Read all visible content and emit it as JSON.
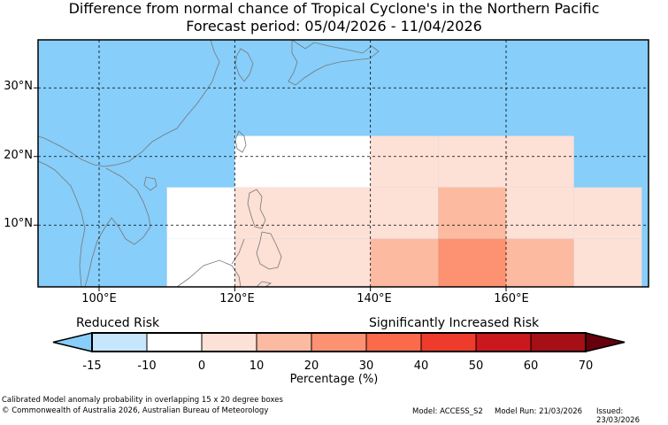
{
  "title": {
    "line1": "Difference from normal chance of Tropical Cyclone's in the Northern Pacific",
    "line2": "Forecast period: 05/04/2026 - 11/04/2026"
  },
  "map": {
    "region": "Northern Pacific",
    "lat_labels": [
      "30°N",
      "20°N",
      "10°N"
    ],
    "lon_labels": [
      "100°E",
      "120°E",
      "140°E",
      "160°E"
    ],
    "lon_range": [
      91,
      181
    ],
    "lat_range": [
      1,
      37
    ],
    "cell_width_deg": 10,
    "cell_height_deg": 7.5,
    "cells": [
      {
        "lon": 120,
        "lat": 15.5,
        "value": -10
      },
      {
        "lon": 130,
        "lat": 15.5,
        "value": -10
      },
      {
        "lon": 140,
        "lat": 15.5,
        "value": 0
      },
      {
        "lon": 150,
        "lat": 15.5,
        "value": 0
      },
      {
        "lon": 160,
        "lat": 15.5,
        "value": 0
      },
      {
        "lon": 110,
        "lat": 8,
        "value": -10
      },
      {
        "lon": 120,
        "lat": 8,
        "value": 0
      },
      {
        "lon": 130,
        "lat": 8,
        "value": 0
      },
      {
        "lon": 140,
        "lat": 8,
        "value": 5
      },
      {
        "lon": 150,
        "lat": 8,
        "value": 15
      },
      {
        "lon": 160,
        "lat": 8,
        "value": 5
      },
      {
        "lon": 170,
        "lat": 8,
        "value": 0
      },
      {
        "lon": 110,
        "lat": 0.5,
        "value": -10
      },
      {
        "lon": 120,
        "lat": 0.5,
        "value": 0
      },
      {
        "lon": 130,
        "lat": 0.5,
        "value": 5
      },
      {
        "lon": 140,
        "lat": 0.5,
        "value": 15
      },
      {
        "lon": 150,
        "lat": 0.5,
        "value": 25
      },
      {
        "lon": 160,
        "lat": 0.5,
        "value": 15
      },
      {
        "lon": 170,
        "lat": 0.5,
        "value": 0
      }
    ]
  },
  "legend": {
    "reduced_label": "Reduced Risk",
    "increased_label": "Significantly Increased Risk",
    "title": "Percentage (%)",
    "ticks": [
      "-15",
      "-10",
      "0",
      "10",
      "20",
      "30",
      "40",
      "50",
      "60",
      "70"
    ],
    "colors": {
      "below": "#87cefa",
      "bins": [
        "#c6e6fb",
        "#ffffff",
        "#fde0d6",
        "#fcbaa1",
        "#fc9272",
        "#fb6a4a",
        "#ef3b2c",
        "#cb181d",
        "#a50f15"
      ],
      "above": "#67000d"
    }
  },
  "footer": {
    "line1": "Calibrated Model anomaly probability in overlapping 15 x 20 degree boxes",
    "line2": "© Commonwealth of Australia 2026, Australian Bureau of Meteorology",
    "model": "Model: ACCESS_S2",
    "run": "Model Run: 21/03/2026",
    "issued": "Issued: 23/03/2026"
  }
}
